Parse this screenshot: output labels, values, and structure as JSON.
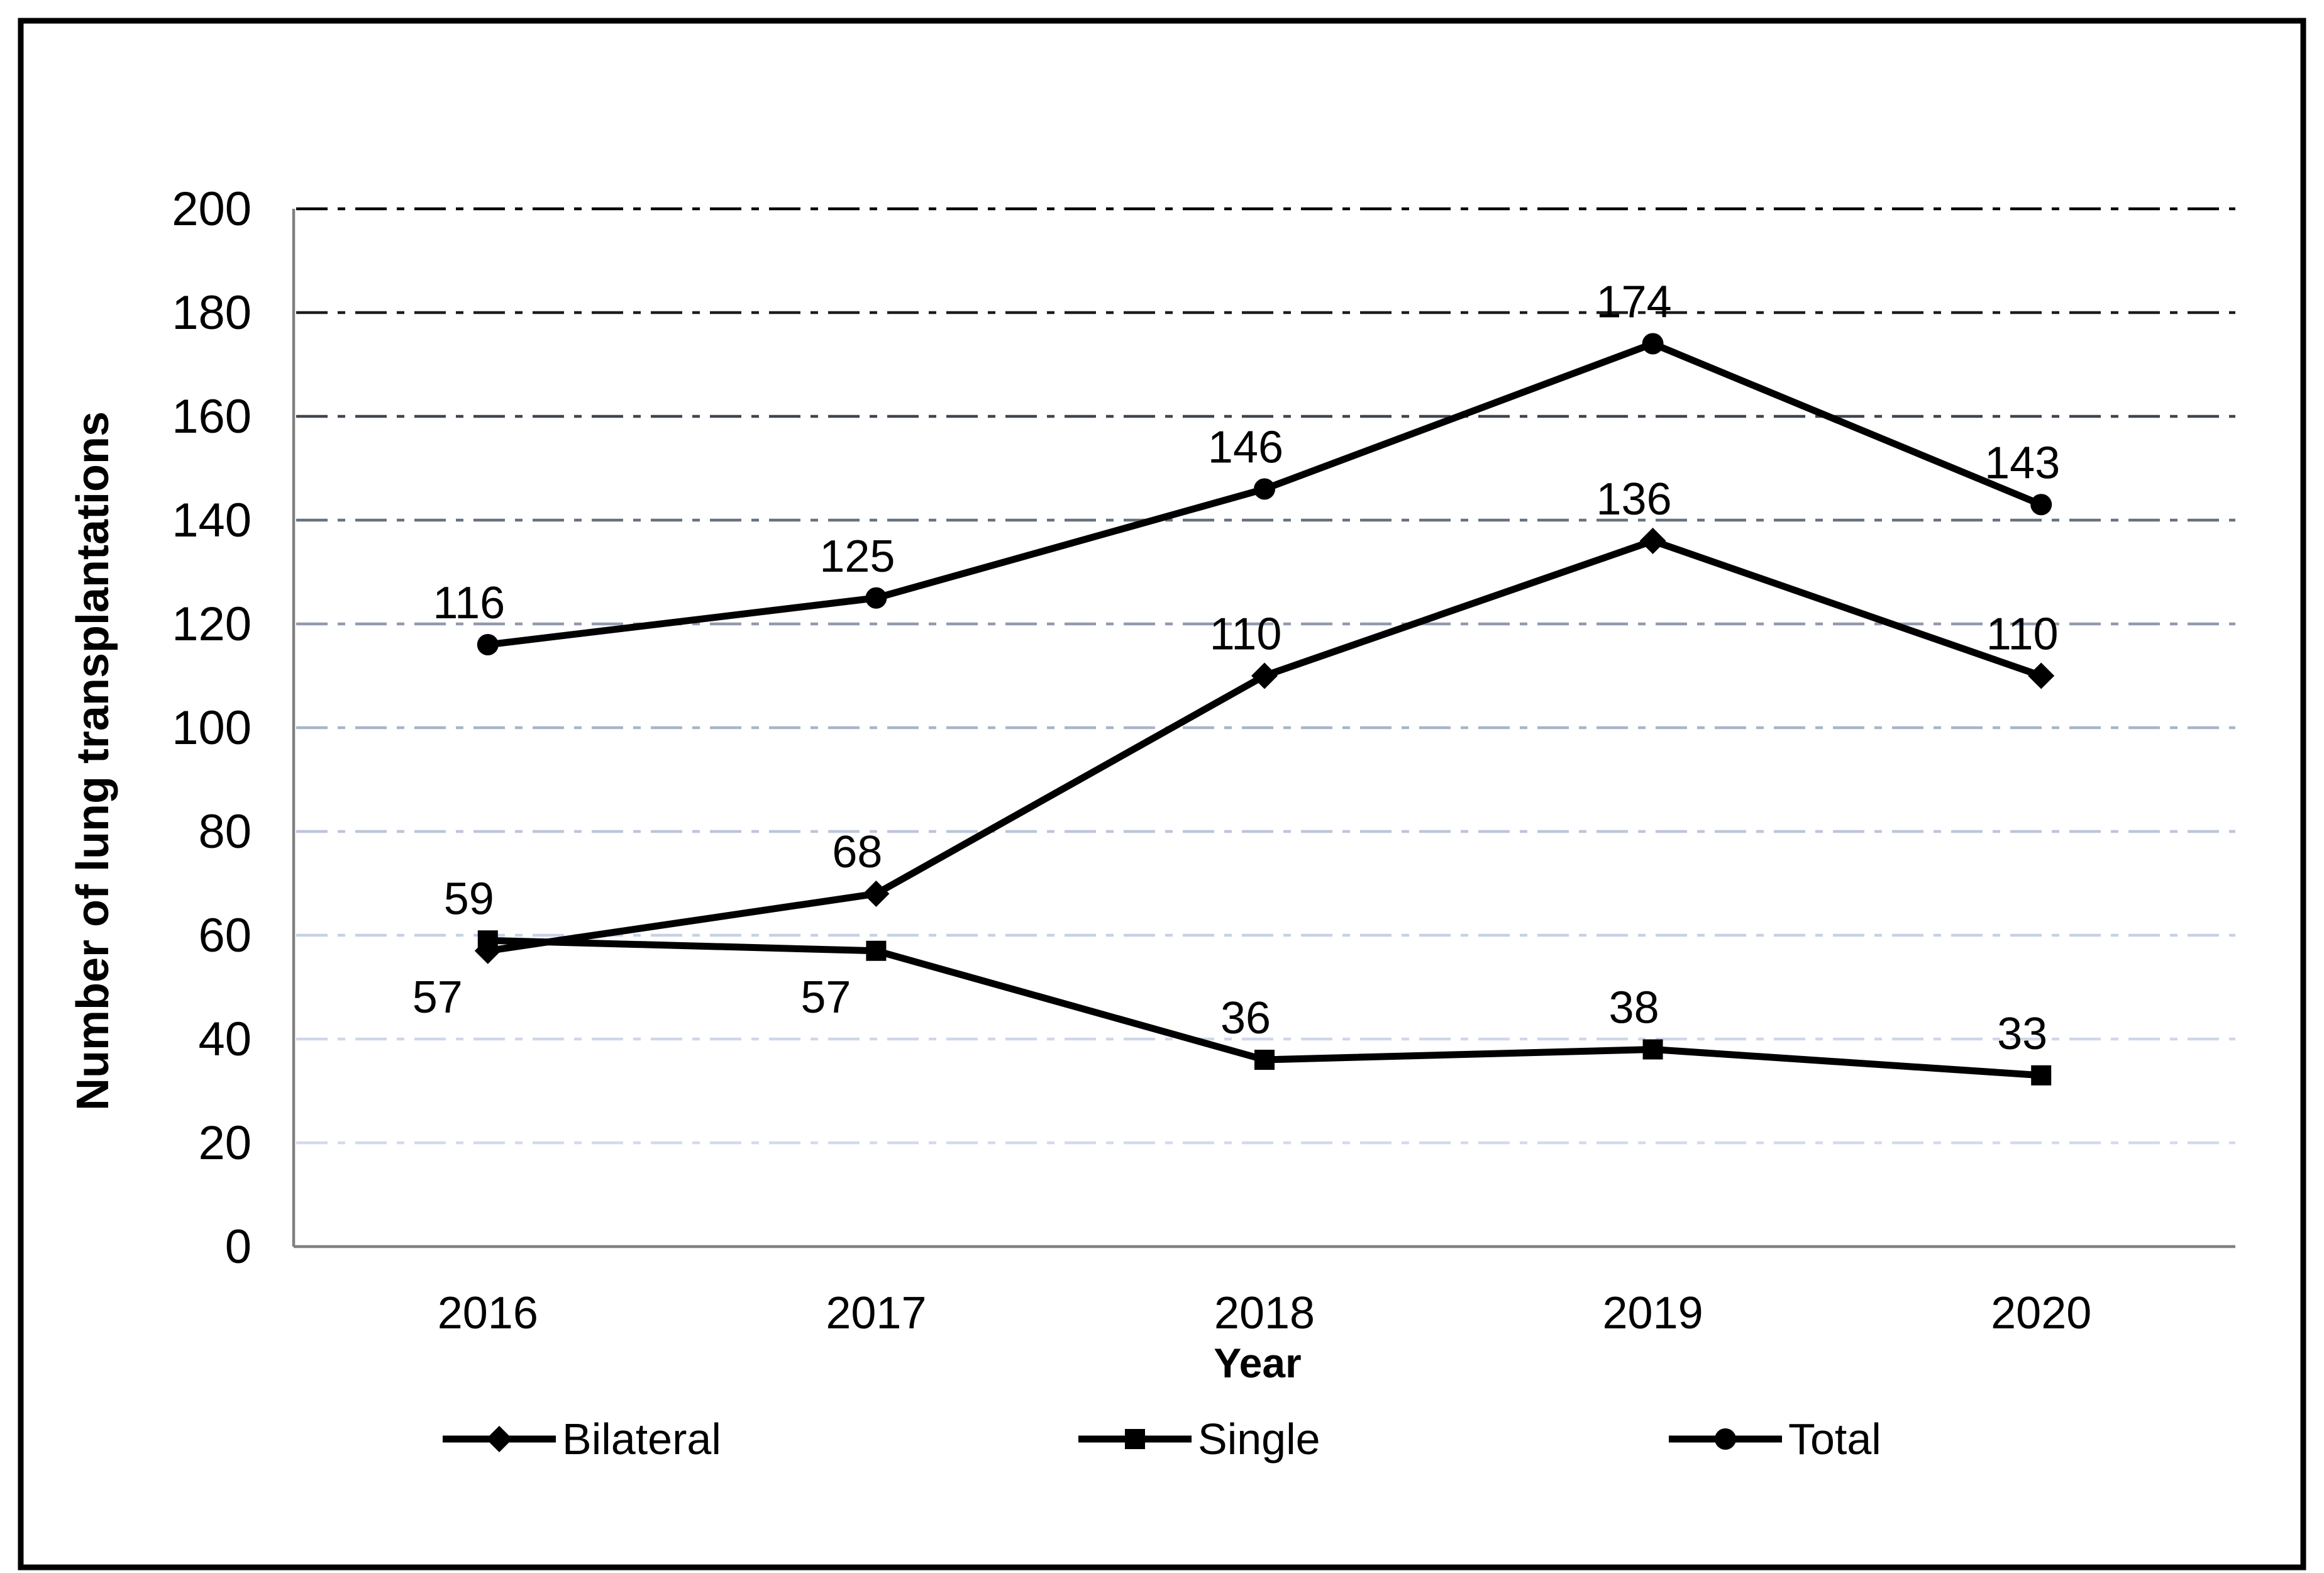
{
  "chart_data": {
    "type": "line",
    "title": "",
    "xlabel": "Year",
    "ylabel": "Number of lung transplantations",
    "categories": [
      "2016",
      "2017",
      "2018",
      "2019",
      "2020"
    ],
    "series": [
      {
        "name": "Bilateral",
        "marker": "diamond",
        "values": [
          57,
          68,
          110,
          136,
          110
        ],
        "label_positions": [
          "below",
          "above",
          "above",
          "above",
          "above"
        ]
      },
      {
        "name": "Single",
        "marker": "square",
        "values": [
          59,
          57,
          36,
          38,
          33
        ],
        "label_positions": [
          "above",
          "below",
          "above",
          "above",
          "above"
        ]
      },
      {
        "name": "Total",
        "marker": "circle",
        "values": [
          116,
          125,
          146,
          174,
          143
        ],
        "label_positions": [
          "above",
          "above",
          "above",
          "above",
          "above"
        ]
      }
    ],
    "ylim": [
      0,
      200
    ],
    "yticks": [
      0,
      20,
      40,
      60,
      80,
      100,
      120,
      140,
      160,
      180,
      200
    ],
    "grid": "horizontal dash-dot lines, dark at top fading to light at bottom",
    "gridline_colors_top_to_bottom": [
      "#000000",
      "#1b1b21",
      "#3f4650",
      "#68727f",
      "#909baf",
      "#a9b4c8",
      "#bcc6da",
      "#c7d0e4",
      "#ced7e9",
      "#d2daee"
    ],
    "legend_position": "bottom",
    "series_color": "#000000",
    "axis_color": "#7f7f7f",
    "border_color": "#000000",
    "background_color": "#ffffff"
  }
}
